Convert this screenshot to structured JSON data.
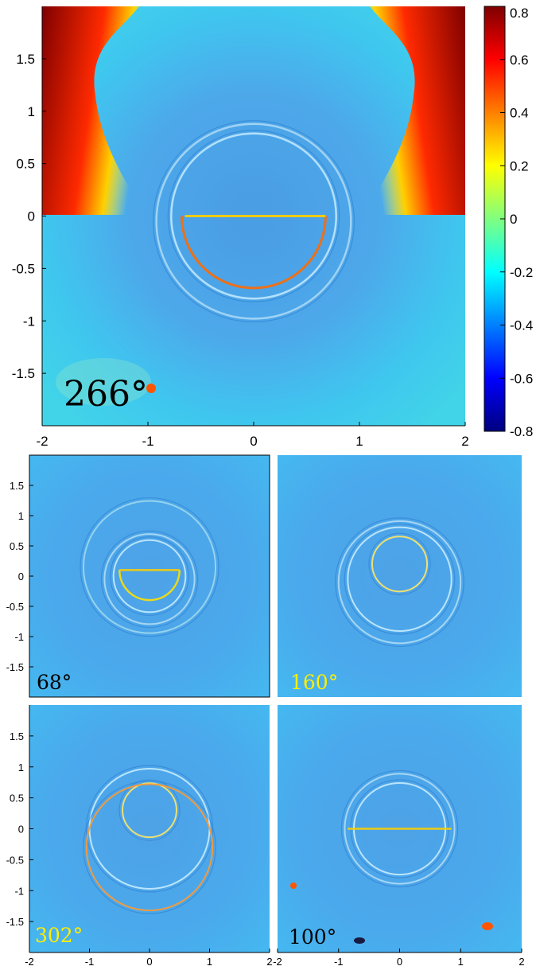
{
  "chart_data": [
    {
      "type": "heatmap",
      "panel": "large",
      "annotation": "266°",
      "annotation_color": "#000000",
      "xlim": [
        -2,
        2
      ],
      "ylim": [
        -2,
        2
      ],
      "xticks": [
        "-2",
        "-1",
        "0",
        "1",
        "2"
      ],
      "yticks": [
        "1.5",
        "1",
        "0.5",
        "0",
        "-0.5",
        "-1",
        "-1.5"
      ],
      "ytick_values": [
        1.5,
        1,
        0.5,
        0,
        -0.5,
        -1,
        -1.5
      ],
      "xtick_values": [
        -2,
        -1,
        0,
        1,
        2
      ],
      "circles": [
        {
          "cx": 0,
          "cy": 0.0,
          "r": 0.78,
          "color": "#bfe8ff"
        },
        {
          "cx": 0,
          "cy": -0.05,
          "r": 0.92,
          "color": "#aad8f5"
        }
      ],
      "chord": {
        "y": 0.0,
        "x_from": -0.65,
        "x_to": 0.68,
        "color": "#ffd000"
      },
      "lower_arc": {
        "cx": 0,
        "cy": 0.0,
        "r": 0.68,
        "color": "#ff6a00"
      },
      "colorbar": {
        "min": -0.8,
        "max": 0.8,
        "ticks": [
          "0.8",
          "0.6",
          "0.4",
          "0.2",
          "0",
          "-0.2",
          "-0.4",
          "-0.6",
          "-0.8"
        ],
        "tick_values": [
          0.8,
          0.6,
          0.4,
          0.2,
          0,
          -0.2,
          -0.4,
          -0.6,
          -0.8
        ],
        "colormap": "jet"
      }
    },
    {
      "type": "heatmap",
      "panel": "small-top-left",
      "annotation": "68°",
      "annotation_color": "#000000",
      "xlim": [
        -2,
        2
      ],
      "ylim": [
        -2,
        2
      ],
      "yticks": [
        "1.5",
        "1",
        "0.5",
        "0",
        "-0.5",
        "-1",
        "-1.5"
      ],
      "ytick_values": [
        1.5,
        1,
        0.5,
        0,
        -0.5,
        -1,
        -1.5
      ],
      "circles": [
        {
          "cx": 0,
          "cy": 0.0,
          "r": 0.6,
          "color": "#c8ecff"
        },
        {
          "cx": 0,
          "cy": -0.05,
          "r": 0.75,
          "color": "#b0dcf5"
        },
        {
          "cx": 0,
          "cy": 0.15,
          "r": 1.1,
          "color": "#9fd8ee"
        }
      ],
      "chord": {
        "y": 0.1,
        "x_from": -0.5,
        "x_to": 0.5,
        "color": "#ffd000"
      },
      "lower_arc": {
        "cx": 0,
        "cy": 0.1,
        "r": 0.5,
        "color": "#ffe000"
      }
    },
    {
      "type": "heatmap",
      "panel": "small-top-right",
      "annotation": "160°",
      "annotation_color": "#ffee00",
      "xlim": [
        -2,
        2
      ],
      "ylim": [
        -2,
        2
      ],
      "circles": [
        {
          "cx": 0,
          "cy": 0.2,
          "r": 0.45,
          "color": "#ffe566"
        },
        {
          "cx": 0,
          "cy": -0.05,
          "r": 0.85,
          "color": "#c8ecff"
        },
        {
          "cx": 0,
          "cy": -0.1,
          "r": 1.0,
          "color": "#b0dcf5"
        }
      ]
    },
    {
      "type": "heatmap",
      "panel": "small-bottom-left",
      "annotation": "302°",
      "annotation_color": "#ffee00",
      "xlim": [
        -2,
        2
      ],
      "ylim": [
        -2,
        2
      ],
      "xticks": [
        "-2",
        "-1",
        "0",
        "1",
        "2"
      ],
      "xtick_values": [
        -2,
        -1,
        0,
        1,
        2
      ],
      "yticks": [
        "1.5",
        "1",
        "0.5",
        "0",
        "-0.5",
        "-1",
        "-1.5"
      ],
      "ytick_values": [
        1.5,
        1,
        0.5,
        0,
        -0.5,
        -1,
        -1.5
      ],
      "circles": [
        {
          "cx": 0,
          "cy": 0.3,
          "r": 0.45,
          "color": "#ffe566"
        },
        {
          "cx": 0,
          "cy": 0.0,
          "r": 1.0,
          "color": "#c8ecff"
        },
        {
          "cx": 0,
          "cy": -0.3,
          "r": 1.05,
          "color": "#ff9a30"
        }
      ]
    },
    {
      "type": "heatmap",
      "panel": "small-bottom-right",
      "annotation": "100°",
      "annotation_color": "#000000",
      "xlim": [
        -2,
        2
      ],
      "ylim": [
        -2,
        2
      ],
      "xticks": [
        "-2",
        "-1",
        "0",
        "1",
        "2"
      ],
      "xtick_values": [
        -2,
        -1,
        0,
        1,
        2
      ],
      "circles": [
        {
          "cx": 0,
          "cy": 0.0,
          "r": 0.75,
          "color": "#c8ecff"
        },
        {
          "cx": 0,
          "cy": 0.0,
          "r": 0.9,
          "color": "#b0dcf5"
        }
      ],
      "chord": {
        "y": 0.0,
        "x_from": -0.85,
        "x_to": 0.85,
        "color": "#ffd000"
      }
    }
  ]
}
